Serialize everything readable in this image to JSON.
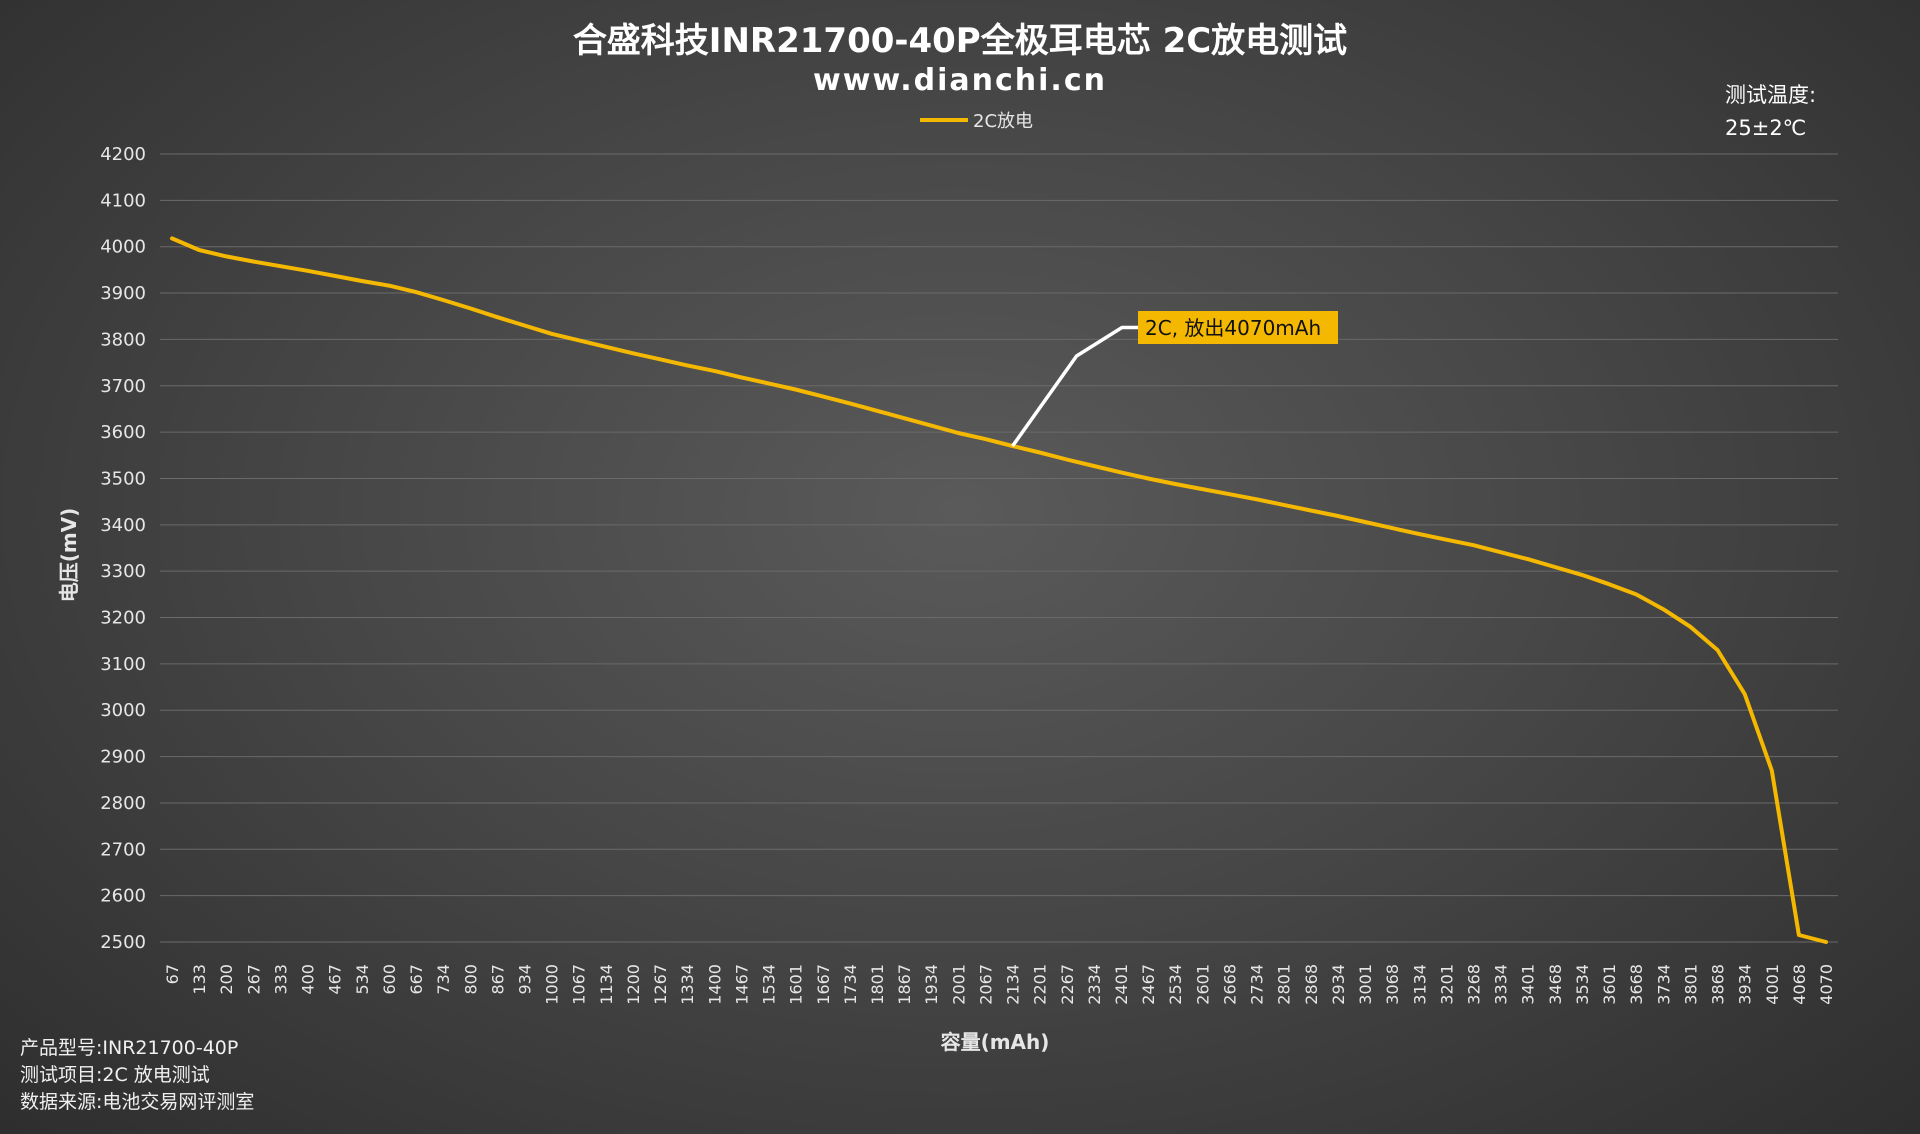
{
  "header": {
    "title": "合盛科技INR21700-40P全极耳电芯 2C放电测试",
    "subtitle": "www.dianchi.cn"
  },
  "temperature_note": {
    "line1": "测试温度:",
    "line2": "25±2℃"
  },
  "info": {
    "model": "产品型号:INR21700-40P",
    "item": "测试项目:2C 放电测试",
    "source": "数据来源:电池交易网评测室"
  },
  "annotation": {
    "text": "2C, 放出4070mAh",
    "at_x": 2134,
    "at_y": 3570
  },
  "colors": {
    "series": "#F5B800",
    "annotation_bg": "#F5B800",
    "leader": "#FFFFFF",
    "grid": "#6A6A6A"
  },
  "chart_data": {
    "type": "line",
    "title": "合盛科技INR21700-40P全极耳电芯 2C放电测试",
    "subtitle": "www.dianchi.cn",
    "xlabel": "容量(mAh)",
    "ylabel": "电压(mV)",
    "ylim": [
      2500,
      4200
    ],
    "yticks": [
      2500,
      2600,
      2700,
      2800,
      2900,
      3000,
      3100,
      3200,
      3300,
      3400,
      3500,
      3600,
      3700,
      3800,
      3900,
      4000,
      4100,
      4200
    ],
    "grid": true,
    "legend": "top-center",
    "x_categories": [
      "67",
      "133",
      "200",
      "267",
      "333",
      "400",
      "467",
      "534",
      "600",
      "667",
      "734",
      "800",
      "867",
      "934",
      "1000",
      "1067",
      "1134",
      "1200",
      "1267",
      "1334",
      "1400",
      "1467",
      "1534",
      "1601",
      "1667",
      "1734",
      "1801",
      "1867",
      "1934",
      "2001",
      "2067",
      "2134",
      "2201",
      "2267",
      "2334",
      "2401",
      "2467",
      "2534",
      "2601",
      "2668",
      "2734",
      "2801",
      "2868",
      "2934",
      "3001",
      "3068",
      "3134",
      "3201",
      "3268",
      "3334",
      "3401",
      "3468",
      "3534",
      "3601",
      "3668",
      "3734",
      "3801",
      "3868",
      "3934",
      "4001",
      "4068",
      "4070"
    ],
    "series": [
      {
        "name": "2C放电",
        "values": [
          4018,
          3993,
          3979,
          3968,
          3958,
          3948,
          3937,
          3926,
          3916,
          3902,
          3885,
          3867,
          3848,
          3830,
          3812,
          3798,
          3784,
          3770,
          3757,
          3744,
          3732,
          3718,
          3705,
          3692,
          3677,
          3662,
          3646,
          3630,
          3614,
          3598,
          3585,
          3570,
          3556,
          3541,
          3527,
          3513,
          3500,
          3488,
          3477,
          3466,
          3455,
          3443,
          3431,
          3419,
          3406,
          3393,
          3380,
          3368,
          3356,
          3341,
          3326,
          3309,
          3292,
          3272,
          3250,
          3218,
          3180,
          3130,
          3035,
          2870,
          2515,
          2500
        ]
      }
    ]
  }
}
